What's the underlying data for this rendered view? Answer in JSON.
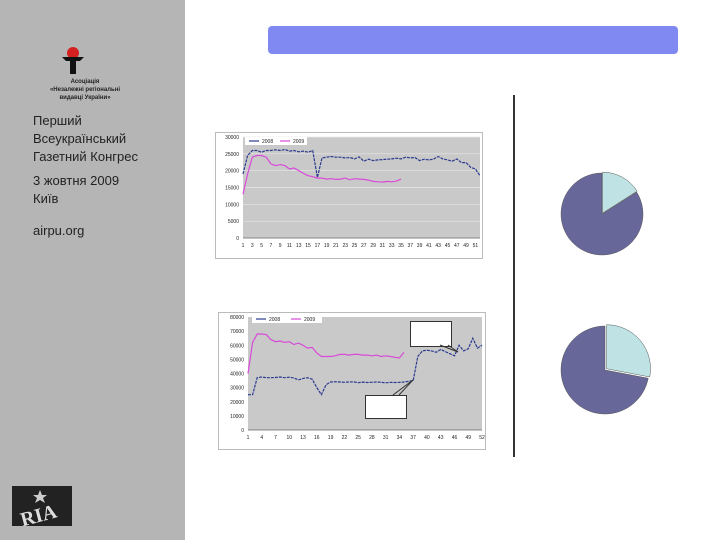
{
  "sidebar": {
    "org_lines": [
      "Асоціація",
      "«Незалежні регіональні",
      "видавці України»"
    ],
    "event_line1": "Перший",
    "event_line2": "Всеукраїнський",
    "event_line3": "Газетний Конгрес",
    "date_line1": "3 жовтня 2009",
    "date_line2": "Київ",
    "website": "airpu.org",
    "bottom_logo_text": "RIA"
  },
  "header": {
    "title": ""
  },
  "colors": {
    "series_2008": "#2b3a8f",
    "series_2009": "#d94ad9",
    "title_bar": "#8088f2",
    "pie_main": "#67679a",
    "pie_slice": "#bfe3e5"
  },
  "chart_data": [
    {
      "type": "line",
      "legend": [
        "2008",
        "2009"
      ],
      "legend_position": "top-left",
      "ylim": [
        0,
        30000
      ],
      "yticks": [
        "30000",
        "25000",
        "20000",
        "15000",
        "10000",
        "5000",
        "0"
      ],
      "xticks": [
        "1",
        "3",
        "5",
        "7",
        "9",
        "11",
        "13",
        "15",
        "17",
        "19",
        "21",
        "23",
        "25",
        "27",
        "29",
        "31",
        "33",
        "35",
        "37",
        "39",
        "41",
        "43",
        "45",
        "47",
        "49",
        "51"
      ],
      "grid": true,
      "series": [
        {
          "name": "2008",
          "x": [
            1,
            2,
            3,
            4,
            5,
            6,
            7,
            8,
            9,
            10,
            11,
            12,
            13,
            14,
            15,
            16,
            17,
            18,
            19,
            20,
            21,
            22,
            23,
            24,
            25,
            26,
            27,
            28,
            29,
            30,
            31,
            32,
            33,
            34,
            35,
            36,
            37,
            38,
            39,
            40,
            41,
            42,
            43,
            44,
            45,
            46,
            47,
            48,
            49,
            50,
            51,
            52
          ],
          "values": [
            19000,
            24500,
            26000,
            26000,
            25500,
            26000,
            26000,
            26200,
            26000,
            26300,
            25800,
            26000,
            25600,
            25800,
            25500,
            26000,
            18000,
            23800,
            24000,
            24200,
            24000,
            24000,
            23800,
            23900,
            23500,
            24100,
            22800,
            23400,
            23000,
            23200,
            23300,
            23400,
            23500,
            23700,
            23500,
            24000,
            23800,
            23900,
            23000,
            23400,
            23200,
            23400,
            24200,
            23500,
            23200,
            22800,
            23500,
            22400,
            22400,
            21000,
            20500,
            18500
          ]
        },
        {
          "name": "2009",
          "x": [
            1,
            2,
            3,
            4,
            5,
            6,
            7,
            8,
            9,
            10,
            11,
            12,
            13,
            14,
            15,
            16,
            17,
            18,
            19,
            20,
            21,
            22,
            23,
            24,
            25,
            26,
            27,
            28,
            29,
            30,
            31,
            32,
            33,
            34,
            35
          ],
          "values": [
            13000,
            19000,
            24000,
            24500,
            24500,
            24000,
            22000,
            21500,
            21800,
            21500,
            20500,
            20800,
            20000,
            19200,
            18500,
            18200,
            17800,
            17800,
            17500,
            17600,
            17400,
            17500,
            17800,
            17300,
            17600,
            17500,
            17400,
            17200,
            16800,
            16700,
            16600,
            16800,
            16700,
            16900,
            17500
          ]
        }
      ]
    },
    {
      "type": "line",
      "legend": [
        "2008",
        "2009"
      ],
      "legend_position": "top-left",
      "ylim": [
        0,
        80000
      ],
      "yticks": [
        "80000",
        "70000",
        "60000",
        "50000",
        "40000",
        "30000",
        "20000",
        "10000",
        "0"
      ],
      "xticks": [
        "1",
        "4",
        "7",
        "10",
        "13",
        "16",
        "19",
        "22",
        "25",
        "28",
        "31",
        "34",
        "37",
        "40",
        "43",
        "46",
        "49",
        "52"
      ],
      "grid": false,
      "series": [
        {
          "name": "2008",
          "x": [
            1,
            2,
            3,
            4,
            5,
            6,
            7,
            8,
            9,
            10,
            11,
            12,
            13,
            14,
            15,
            16,
            17,
            18,
            19,
            20,
            21,
            22,
            23,
            24,
            25,
            26,
            27,
            28,
            29,
            30,
            31,
            32,
            33,
            34,
            35,
            36,
            37,
            38,
            39,
            40,
            41,
            42,
            43,
            44,
            45,
            46,
            47,
            48,
            49,
            50,
            51,
            52
          ],
          "values": [
            25000,
            25000,
            37000,
            37500,
            37000,
            37000,
            37200,
            37500,
            37000,
            37400,
            36800,
            35500,
            36500,
            37000,
            36000,
            30000,
            25000,
            32000,
            34000,
            34200,
            34000,
            33800,
            34000,
            34100,
            33500,
            33900,
            33600,
            33800,
            34000,
            33800,
            33400,
            33700,
            33600,
            33700,
            34000,
            34500,
            35000,
            52000,
            56000,
            56500,
            56000,
            55000,
            57000,
            55500,
            54000,
            52500,
            60000,
            56000,
            57500,
            65000,
            58000,
            60000
          ]
        },
        {
          "name": "2009",
          "x": [
            1,
            2,
            3,
            4,
            5,
            6,
            7,
            8,
            9,
            10,
            11,
            12,
            13,
            14,
            15,
            16,
            17,
            18,
            19,
            20,
            21,
            22,
            23,
            24,
            25,
            26,
            27,
            28,
            29,
            30,
            31,
            32,
            33,
            34,
            35
          ],
          "values": [
            40000,
            62000,
            68000,
            68000,
            67500,
            64000,
            62500,
            63000,
            62000,
            62500,
            60500,
            61500,
            60000,
            58000,
            58500,
            54500,
            52000,
            52000,
            52000,
            52500,
            53500,
            53500,
            53000,
            53500,
            53500,
            53000,
            53000,
            52500,
            53000,
            52000,
            52500,
            52000,
            51500,
            51000,
            55000
          ]
        }
      ]
    },
    {
      "type": "pie",
      "values": [
        84,
        16
      ],
      "colors": [
        "#67679a",
        "#bfe3e5"
      ]
    },
    {
      "type": "pie",
      "values": [
        72,
        28
      ],
      "colors": [
        "#67679a",
        "#bfe3e5"
      ]
    }
  ]
}
